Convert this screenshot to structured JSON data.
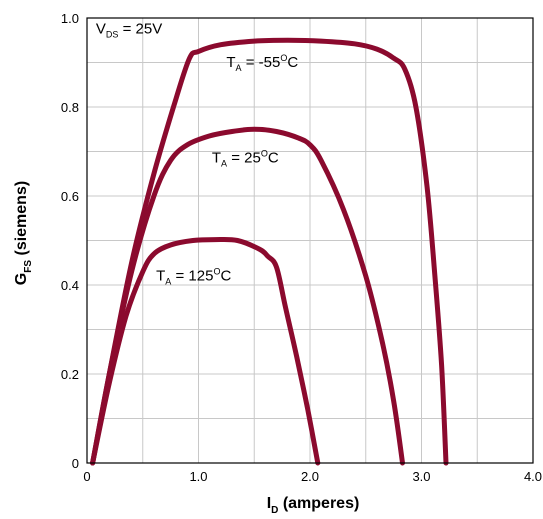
{
  "chart_data": {
    "type": "line",
    "xlabel": {
      "main": "I",
      "sub": "D",
      "rest": " (amperes)"
    },
    "ylabel": {
      "main": "G",
      "sub": "FS",
      "rest": "  (siemens)"
    },
    "xlim": [
      0,
      4.0
    ],
    "ylim": [
      0,
      1.0
    ],
    "x_ticks": [
      0,
      0.5,
      1.0,
      1.5,
      2.0,
      2.5,
      3.0,
      3.5,
      4.0
    ],
    "y_ticks": [
      0,
      0.1,
      0.2,
      0.3,
      0.4,
      0.5,
      0.6,
      0.7,
      0.8,
      0.9,
      1.0
    ],
    "x_tick_labels": [
      {
        "value": 0,
        "label": "0"
      },
      {
        "value": 1.0,
        "label": "1.0"
      },
      {
        "value": 2.0,
        "label": "2.0"
      },
      {
        "value": 3.0,
        "label": "3.0"
      },
      {
        "value": 4.0,
        "label": "4.0"
      }
    ],
    "y_tick_labels": [
      {
        "value": 0,
        "label": "0"
      },
      {
        "value": 0.2,
        "label": "0.2"
      },
      {
        "value": 0.4,
        "label": "0.4"
      },
      {
        "value": 0.6,
        "label": "0.6"
      },
      {
        "value": 0.8,
        "label": "0.8"
      },
      {
        "value": 1.0,
        "label": "1.0"
      }
    ],
    "grid": true,
    "condition_label": {
      "main": "V",
      "sub": "DS",
      "rest": " = 25V",
      "x": 0.08,
      "y": 0.965
    },
    "series_color": "#8b0a2e",
    "series": [
      {
        "label": {
          "main": "T",
          "sub": "A",
          "rest": " = -55",
          "sup": "O",
          "tail": "C",
          "x": 1.25,
          "y": 0.89
        },
        "points": [
          [
            0.05,
            0.0
          ],
          [
            0.2,
            0.2
          ],
          [
            0.4,
            0.45
          ],
          [
            0.6,
            0.65
          ],
          [
            0.8,
            0.82
          ],
          [
            0.92,
            0.91
          ],
          [
            1.0,
            0.925
          ],
          [
            1.2,
            0.94
          ],
          [
            1.5,
            0.948
          ],
          [
            1.8,
            0.95
          ],
          [
            2.1,
            0.948
          ],
          [
            2.4,
            0.942
          ],
          [
            2.6,
            0.93
          ],
          [
            2.75,
            0.91
          ],
          [
            2.85,
            0.885
          ],
          [
            2.95,
            0.8
          ],
          [
            3.05,
            0.62
          ],
          [
            3.12,
            0.42
          ],
          [
            3.18,
            0.22
          ],
          [
            3.22,
            0.0
          ]
        ]
      },
      {
        "label": {
          "main": "T",
          "sub": "A",
          "rest": " = 25",
          "sup": "O",
          "tail": "C",
          "x": 1.12,
          "y": 0.675
        },
        "points": [
          [
            0.05,
            0.0
          ],
          [
            0.2,
            0.2
          ],
          [
            0.4,
            0.43
          ],
          [
            0.6,
            0.6
          ],
          [
            0.75,
            0.68
          ],
          [
            0.9,
            0.715
          ],
          [
            1.1,
            0.735
          ],
          [
            1.3,
            0.745
          ],
          [
            1.5,
            0.75
          ],
          [
            1.7,
            0.745
          ],
          [
            1.9,
            0.73
          ],
          [
            2.0,
            0.715
          ],
          [
            2.1,
            0.68
          ],
          [
            2.3,
            0.57
          ],
          [
            2.5,
            0.42
          ],
          [
            2.65,
            0.27
          ],
          [
            2.75,
            0.14
          ],
          [
            2.83,
            0.0
          ]
        ]
      },
      {
        "label": {
          "main": "T",
          "sub": "A",
          "rest": " = 125",
          "sup": "O",
          "tail": "C",
          "x": 0.62,
          "y": 0.41
        },
        "points": [
          [
            0.05,
            0.0
          ],
          [
            0.2,
            0.18
          ],
          [
            0.35,
            0.33
          ],
          [
            0.5,
            0.43
          ],
          [
            0.6,
            0.47
          ],
          [
            0.75,
            0.49
          ],
          [
            0.95,
            0.5
          ],
          [
            1.15,
            0.502
          ],
          [
            1.35,
            0.5
          ],
          [
            1.55,
            0.48
          ],
          [
            1.62,
            0.465
          ],
          [
            1.7,
            0.44
          ],
          [
            1.78,
            0.35
          ],
          [
            1.88,
            0.24
          ],
          [
            1.98,
            0.12
          ],
          [
            2.07,
            0.0
          ]
        ]
      }
    ]
  }
}
